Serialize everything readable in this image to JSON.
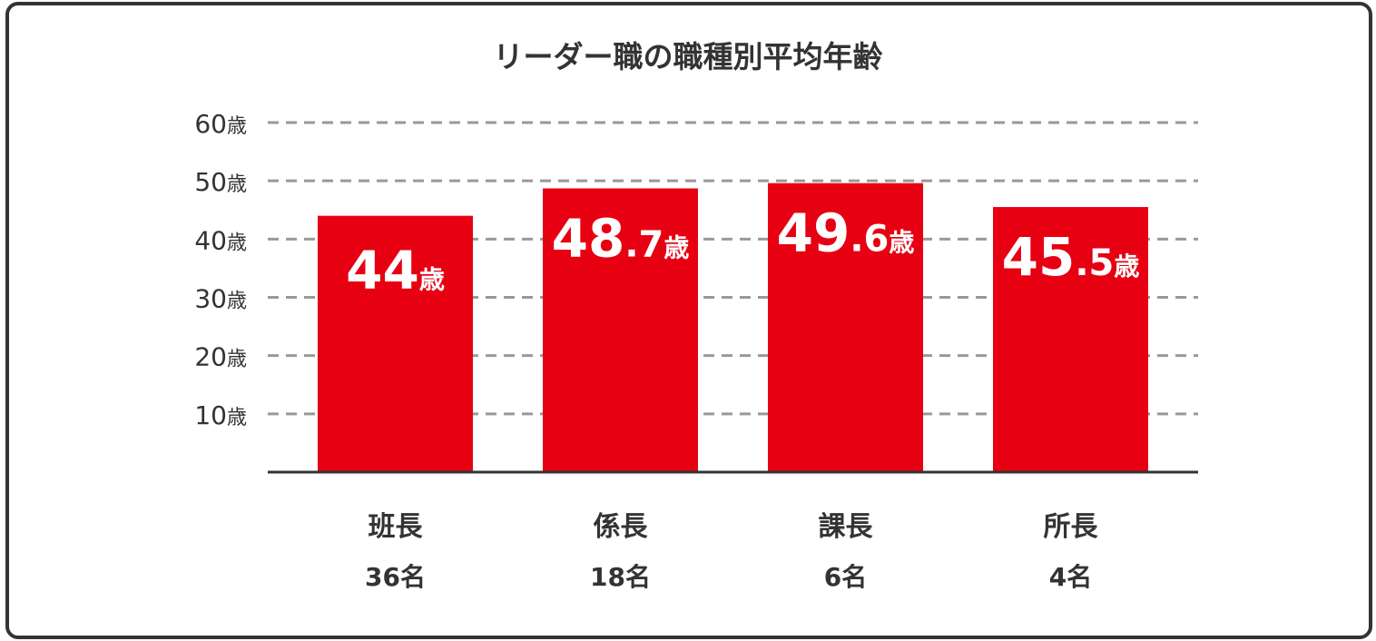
{
  "chart_data": {
    "type": "bar",
    "title": "リーダー職の職種別平均年齢",
    "categories": [
      "班長",
      "係長",
      "課長",
      "所長"
    ],
    "counts": [
      "36名",
      "18名",
      "6名",
      "4名"
    ],
    "values": [
      44,
      48.7,
      49.6,
      45.5
    ],
    "unit": "歳",
    "yticks": [
      10,
      20,
      30,
      40,
      50,
      60
    ],
    "ylim": [
      0,
      60
    ],
    "grid": true,
    "colors": {
      "bar": "#e60012",
      "grid": "#999999",
      "axis": "#333333",
      "text": "#333333"
    }
  }
}
